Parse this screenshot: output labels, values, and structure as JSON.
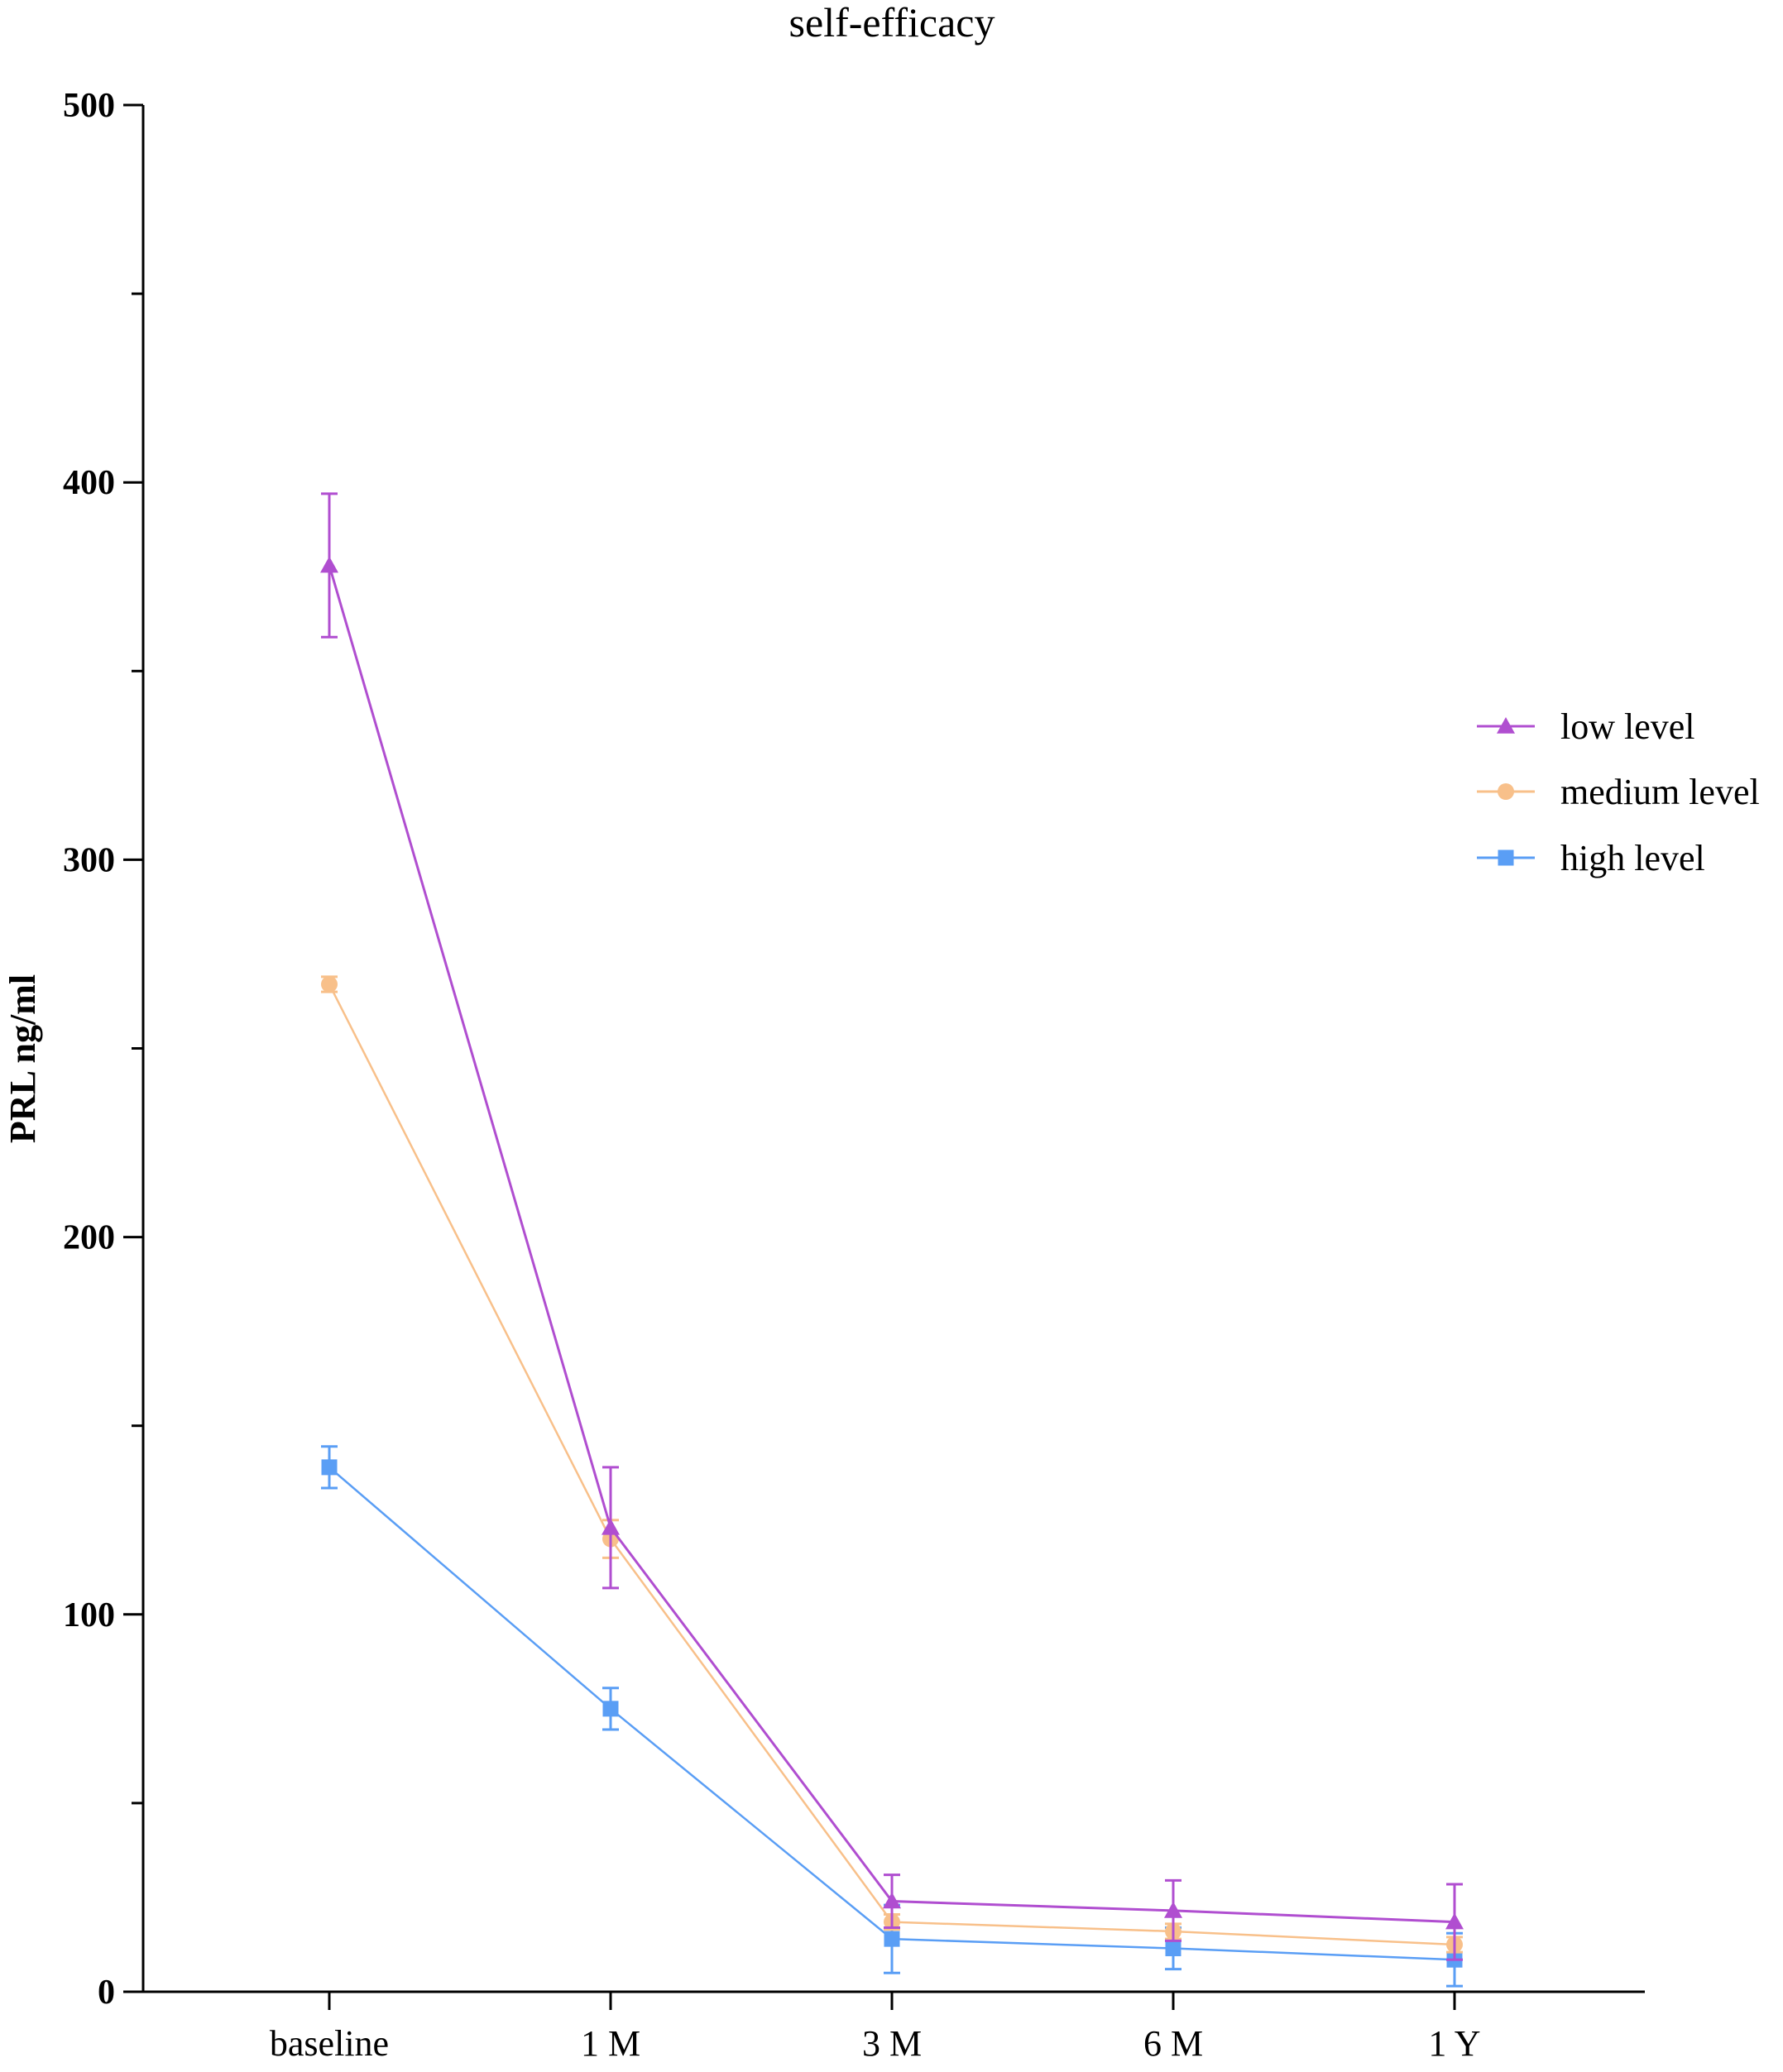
{
  "chart_data": {
    "type": "line",
    "title": "self-efficacy",
    "xlabel": "",
    "ylabel": "PRL ng/ml",
    "categories": [
      "baseline",
      "1 M",
      "3 M",
      "6 M",
      "1 Y"
    ],
    "ylim": [
      0,
      500
    ],
    "yticks": [
      0,
      100,
      200,
      300,
      400,
      500
    ],
    "grid": false,
    "legend": "right",
    "series": [
      {
        "name": "low level",
        "color": "#b04ed0",
        "marker": "triangle",
        "values": [
          378,
          123,
          24,
          21.5,
          18.5
        ],
        "errors": [
          19,
          16,
          7,
          8,
          10
        ]
      },
      {
        "name": "medium level",
        "color": "#f8c08a",
        "marker": "circle",
        "values": [
          267,
          120,
          18.5,
          16,
          12.5
        ],
        "errors": [
          2,
          5,
          2,
          2,
          2
        ]
      },
      {
        "name": "high level",
        "color": "#5a9ef5",
        "marker": "square",
        "values": [
          139,
          75,
          14,
          11.5,
          8.5
        ],
        "errors": [
          5.5,
          5.5,
          9,
          5.5,
          7
        ]
      }
    ]
  }
}
